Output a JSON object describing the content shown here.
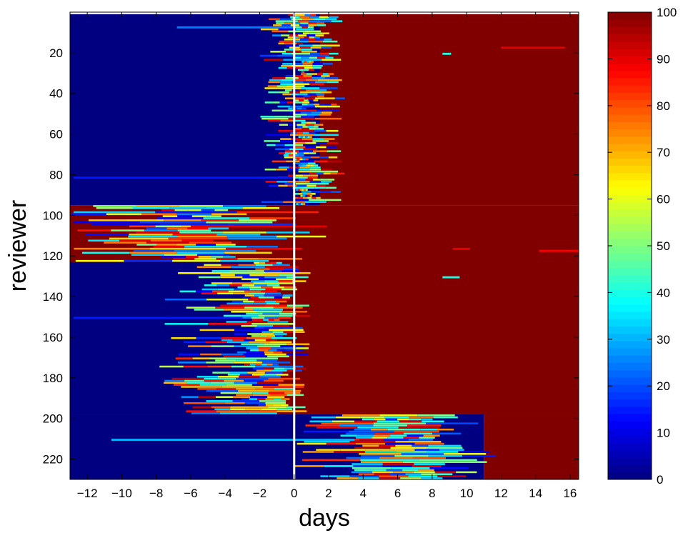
{
  "chart_data": {
    "type": "heatmap",
    "title": "",
    "xlabel": "days",
    "ylabel": "reviewer",
    "xlim": [
      -13,
      16.5
    ],
    "ylim": [
      230,
      0
    ],
    "x_ticks": [
      -12,
      -10,
      -8,
      -6,
      -4,
      -2,
      0,
      2,
      4,
      6,
      8,
      10,
      12,
      14,
      16
    ],
    "x_tick_labels": [
      "−12",
      "−10",
      "−8",
      "−6",
      "−4",
      "−2",
      "0",
      "2",
      "4",
      "6",
      "8",
      "10",
      "12",
      "14",
      "16"
    ],
    "y_ticks": [
      20,
      40,
      60,
      80,
      100,
      120,
      140,
      160,
      180,
      200,
      220
    ],
    "y_tick_labels": [
      "20",
      "40",
      "60",
      "80",
      "100",
      "120",
      "140",
      "160",
      "180",
      "200",
      "220"
    ],
    "colorbar": {
      "colormap": "jet",
      "range": [
        0,
        100
      ],
      "ticks": [
        0,
        10,
        20,
        30,
        40,
        50,
        60,
        70,
        80,
        90,
        100
      ],
      "tick_labels": [
        "0",
        "10",
        "20",
        "30",
        "40",
        "50",
        "60",
        "70",
        "80",
        "90",
        "100"
      ]
    },
    "grid": false,
    "reference_line": {
      "x": 0,
      "color": "#ffffff"
    },
    "regions": [
      {
        "rows": [
          1,
          95
        ],
        "x_range": [
          -13,
          1.5
        ],
        "value": 0
      },
      {
        "rows": [
          1,
          95
        ],
        "x_range": [
          1.5,
          16.5
        ],
        "value": 100
      },
      {
        "rows": [
          95,
          125
        ],
        "x_range": [
          -13,
          -7
        ],
        "value": 100
      },
      {
        "rows": [
          95,
          125
        ],
        "x_range": [
          -7,
          16.5
        ],
        "value": 100
      },
      {
        "rows": [
          123,
          198
        ],
        "x_range": [
          -13,
          -2
        ],
        "value": 0
      },
      {
        "rows": [
          123,
          198
        ],
        "x_range": [
          -2,
          16.5
        ],
        "value": 100
      },
      {
        "rows": [
          198,
          230
        ],
        "x_range": [
          -13,
          11
        ],
        "value": 0
      },
      {
        "rows": [
          198,
          230
        ],
        "x_range": [
          11,
          16.5
        ],
        "value": 100
      }
    ],
    "bands": [
      {
        "group": "1-95",
        "rows": [
          1,
          95
        ],
        "start_day_range": [
          -2,
          0.5
        ],
        "end_day_range": [
          0.5,
          3
        ],
        "tail_value": 0
      },
      {
        "group": "95-123",
        "rows": [
          95,
          123
        ],
        "start_day_range": [
          -13,
          -7
        ],
        "end_day_range": [
          -5,
          2
        ],
        "tail_value": 100
      },
      {
        "group": "123-198",
        "rows": [
          123,
          198
        ],
        "start_day_range": [
          -8,
          -2
        ],
        "end_day_range": [
          -1,
          1
        ],
        "tail_value": 0
      },
      {
        "group": "198-230",
        "rows": [
          198,
          230
        ],
        "start_day_range": [
          0,
          4
        ],
        "end_day_range": [
          8,
          12
        ],
        "tail_value": 0
      }
    ],
    "notable_streaks": [
      {
        "row": 7,
        "x": [
          -6.8,
          0
        ],
        "value": 25
      },
      {
        "row": 17,
        "x": [
          12,
          15.7
        ],
        "value": 90
      },
      {
        "row": 20,
        "x": [
          8.6,
          9.1
        ],
        "value": 40
      },
      {
        "row": 81,
        "x": [
          -12.8,
          0
        ],
        "value": 15
      },
      {
        "row": 105,
        "x": [
          -6,
          1.9
        ],
        "value": 90
      },
      {
        "row": 116,
        "x": [
          9.2,
          10.2
        ],
        "value": 90
      },
      {
        "row": 117,
        "x": [
          14.2,
          16.5
        ],
        "value": 88
      },
      {
        "row": 130,
        "x": [
          8.6,
          9.6
        ],
        "value": 40
      },
      {
        "row": 150,
        "x": [
          -12.8,
          -3
        ],
        "value": 15
      },
      {
        "row": 210,
        "x": [
          -10.6,
          3.5
        ],
        "value": 30
      }
    ]
  }
}
